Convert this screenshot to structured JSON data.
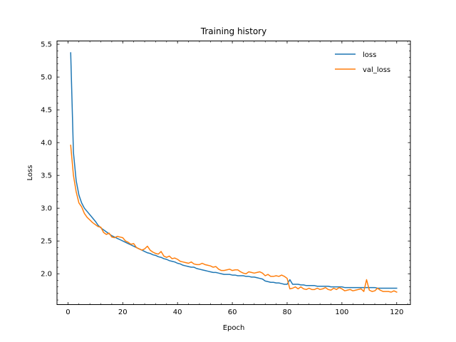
{
  "chart_data": {
    "type": "line",
    "title": "Training history",
    "xlabel": "Epoch",
    "ylabel": "Loss",
    "xlim": [
      -4,
      125
    ],
    "ylim": [
      1.53,
      5.55
    ],
    "xticks": [
      0,
      20,
      40,
      60,
      80,
      100,
      120
    ],
    "yticks": [
      2.0,
      2.5,
      3.0,
      3.5,
      4.0,
      4.5,
      5.0,
      5.5
    ],
    "ytick_labels": [
      "2.0",
      "2.5",
      "3.0",
      "3.5",
      "4.0",
      "4.5",
      "5.0",
      "5.5"
    ],
    "legend_position": "top-right",
    "grid": false,
    "x": [
      1,
      2,
      3,
      4,
      5,
      6,
      7,
      8,
      9,
      10,
      11,
      12,
      13,
      14,
      15,
      16,
      17,
      18,
      19,
      20,
      21,
      22,
      23,
      24,
      25,
      26,
      27,
      28,
      29,
      30,
      31,
      32,
      33,
      34,
      35,
      36,
      37,
      38,
      39,
      40,
      41,
      42,
      43,
      44,
      45,
      46,
      47,
      48,
      49,
      50,
      51,
      52,
      53,
      54,
      55,
      56,
      57,
      58,
      59,
      60,
      61,
      62,
      63,
      64,
      65,
      66,
      67,
      68,
      69,
      70,
      71,
      72,
      73,
      74,
      75,
      76,
      77,
      78,
      79,
      80,
      81,
      82,
      83,
      84,
      85,
      86,
      87,
      88,
      89,
      90,
      91,
      92,
      93,
      94,
      95,
      96,
      97,
      98,
      99,
      100,
      101,
      102,
      103,
      104,
      105,
      106,
      107,
      108,
      109,
      110,
      111,
      112,
      113,
      114,
      115,
      116,
      117,
      118,
      119,
      120
    ],
    "series": [
      {
        "name": "loss",
        "color": "#1f77b4",
        "values": [
          5.37,
          3.85,
          3.42,
          3.2,
          3.08,
          3.0,
          2.95,
          2.9,
          2.85,
          2.8,
          2.74,
          2.7,
          2.67,
          2.64,
          2.61,
          2.58,
          2.56,
          2.54,
          2.52,
          2.5,
          2.48,
          2.46,
          2.44,
          2.42,
          2.4,
          2.38,
          2.36,
          2.34,
          2.32,
          2.31,
          2.29,
          2.28,
          2.26,
          2.25,
          2.23,
          2.22,
          2.2,
          2.19,
          2.18,
          2.16,
          2.15,
          2.13,
          2.12,
          2.11,
          2.1,
          2.1,
          2.08,
          2.07,
          2.06,
          2.05,
          2.04,
          2.03,
          2.02,
          2.02,
          2.01,
          2.0,
          1.99,
          1.99,
          1.99,
          1.98,
          1.98,
          1.97,
          1.97,
          1.97,
          1.96,
          1.96,
          1.95,
          1.95,
          1.94,
          1.93,
          1.92,
          1.89,
          1.88,
          1.87,
          1.87,
          1.86,
          1.86,
          1.85,
          1.84,
          1.84,
          1.91,
          1.84,
          1.84,
          1.84,
          1.83,
          1.83,
          1.82,
          1.82,
          1.82,
          1.82,
          1.81,
          1.81,
          1.81,
          1.81,
          1.81,
          1.8,
          1.8,
          1.8,
          1.8,
          1.8,
          1.79,
          1.79,
          1.79,
          1.79,
          1.79,
          1.79,
          1.79,
          1.79,
          1.79,
          1.79,
          1.79,
          1.79,
          1.78,
          1.78,
          1.78,
          1.78,
          1.78,
          1.78,
          1.78,
          1.78
        ]
      },
      {
        "name": "val_loss",
        "color": "#ff7f0e",
        "values": [
          3.96,
          3.5,
          3.25,
          3.08,
          3.02,
          2.92,
          2.86,
          2.82,
          2.78,
          2.75,
          2.72,
          2.71,
          2.63,
          2.6,
          2.62,
          2.56,
          2.55,
          2.57,
          2.56,
          2.55,
          2.5,
          2.48,
          2.45,
          2.46,
          2.4,
          2.38,
          2.36,
          2.38,
          2.42,
          2.36,
          2.33,
          2.31,
          2.3,
          2.34,
          2.27,
          2.25,
          2.27,
          2.23,
          2.24,
          2.22,
          2.19,
          2.18,
          2.17,
          2.16,
          2.18,
          2.15,
          2.14,
          2.14,
          2.16,
          2.14,
          2.13,
          2.12,
          2.1,
          2.11,
          2.07,
          2.05,
          2.05,
          2.06,
          2.07,
          2.05,
          2.06,
          2.06,
          2.03,
          2.01,
          2.0,
          2.03,
          2.02,
          2.01,
          2.02,
          2.03,
          2.01,
          1.97,
          1.99,
          1.96,
          1.96,
          1.97,
          1.96,
          1.98,
          1.96,
          1.93,
          1.77,
          1.78,
          1.8,
          1.77,
          1.8,
          1.77,
          1.76,
          1.78,
          1.76,
          1.76,
          1.78,
          1.76,
          1.77,
          1.79,
          1.76,
          1.75,
          1.78,
          1.76,
          1.79,
          1.77,
          1.74,
          1.75,
          1.76,
          1.74,
          1.75,
          1.76,
          1.77,
          1.73,
          1.91,
          1.75,
          1.73,
          1.74,
          1.78,
          1.75,
          1.73,
          1.73,
          1.73,
          1.72,
          1.74,
          1.72
        ]
      }
    ]
  }
}
